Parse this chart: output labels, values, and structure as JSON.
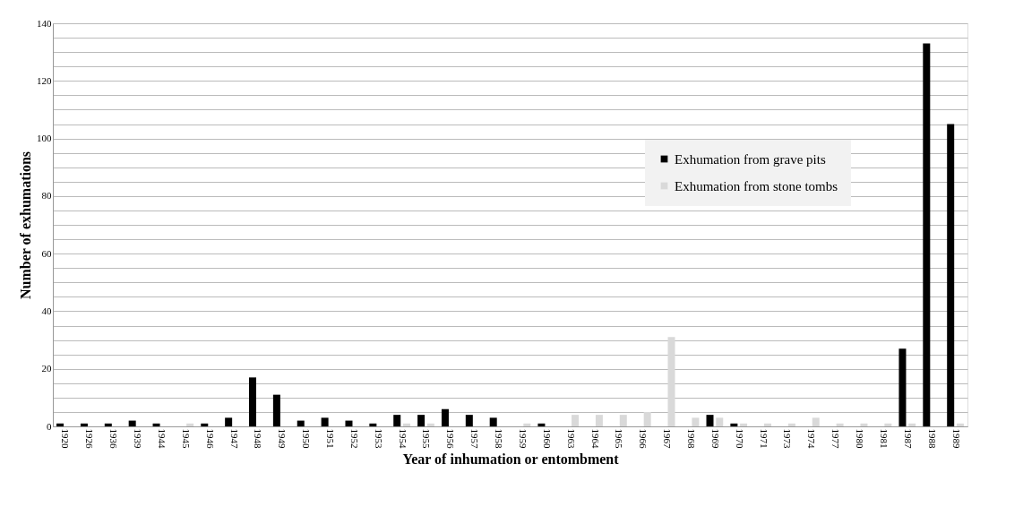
{
  "chart_data": {
    "type": "bar",
    "xlabel": "Year of inhumation or entombment",
    "ylabel": "Number of exhumations",
    "categories": [
      "1920",
      "1926",
      "1936",
      "1939",
      "1944",
      "1945",
      "1946",
      "1947",
      "1948",
      "1949",
      "1950",
      "1951",
      "1952",
      "1953",
      "1954",
      "1955",
      "1956",
      "1957",
      "1958",
      "1959",
      "1960",
      "1963",
      "1964",
      "1965",
      "1966",
      "1967",
      "1968",
      "1969",
      "1970",
      "1971",
      "1973",
      "1974",
      "1977",
      "1980",
      "1981",
      "1987",
      "1988",
      "1989"
    ],
    "series": [
      {
        "name": "Exhumation from grave pits",
        "color": "#000000",
        "values": [
          1,
          1,
          1,
          2,
          1,
          0,
          1,
          3,
          17,
          11,
          2,
          3,
          2,
          1,
          4,
          4,
          6,
          4,
          3,
          0,
          1,
          0,
          0,
          0,
          0,
          0,
          0,
          4,
          1,
          0,
          0,
          0,
          0,
          0,
          0,
          27,
          133,
          105
        ]
      },
      {
        "name": "Exhumation from stone tombs",
        "color": "#d9d9d9",
        "values": [
          0,
          0,
          0,
          0,
          0,
          1,
          0,
          0,
          0,
          0,
          0,
          0,
          0,
          0,
          1,
          1,
          0,
          0,
          0,
          1,
          0,
          4,
          4,
          4,
          5,
          31,
          3,
          3,
          1,
          1,
          1,
          3,
          1,
          1,
          1,
          1,
          0,
          1
        ]
      }
    ],
    "ylim": [
      0,
      140
    ],
    "yticks": [
      0,
      {
        "value": 5,
        "label": null
      },
      {
        "value": 10,
        "label": null
      },
      {
        "value": 15,
        "label": null
      },
      20,
      {
        "value": 25,
        "label": null
      },
      {
        "value": 30,
        "label": null
      },
      {
        "value": 35,
        "label": null
      },
      40,
      {
        "value": 45,
        "label": null
      },
      {
        "value": 50,
        "label": null
      },
      {
        "value": 55,
        "label": null
      },
      60,
      {
        "value": 65,
        "label": null
      },
      {
        "value": 70,
        "label": null
      },
      {
        "value": 75,
        "label": null
      },
      80,
      {
        "value": 85,
        "label": null
      },
      {
        "value": 90,
        "label": null
      },
      {
        "value": 95,
        "label": null
      },
      100,
      {
        "value": 105,
        "label": null
      },
      {
        "value": 110,
        "label": null
      },
      {
        "value": 115,
        "label": null
      },
      120,
      {
        "value": 125,
        "label": null
      },
      {
        "value": 130,
        "label": null
      },
      {
        "value": 135,
        "label": null
      },
      140
    ],
    "grid": "y",
    "legend": "top right"
  }
}
